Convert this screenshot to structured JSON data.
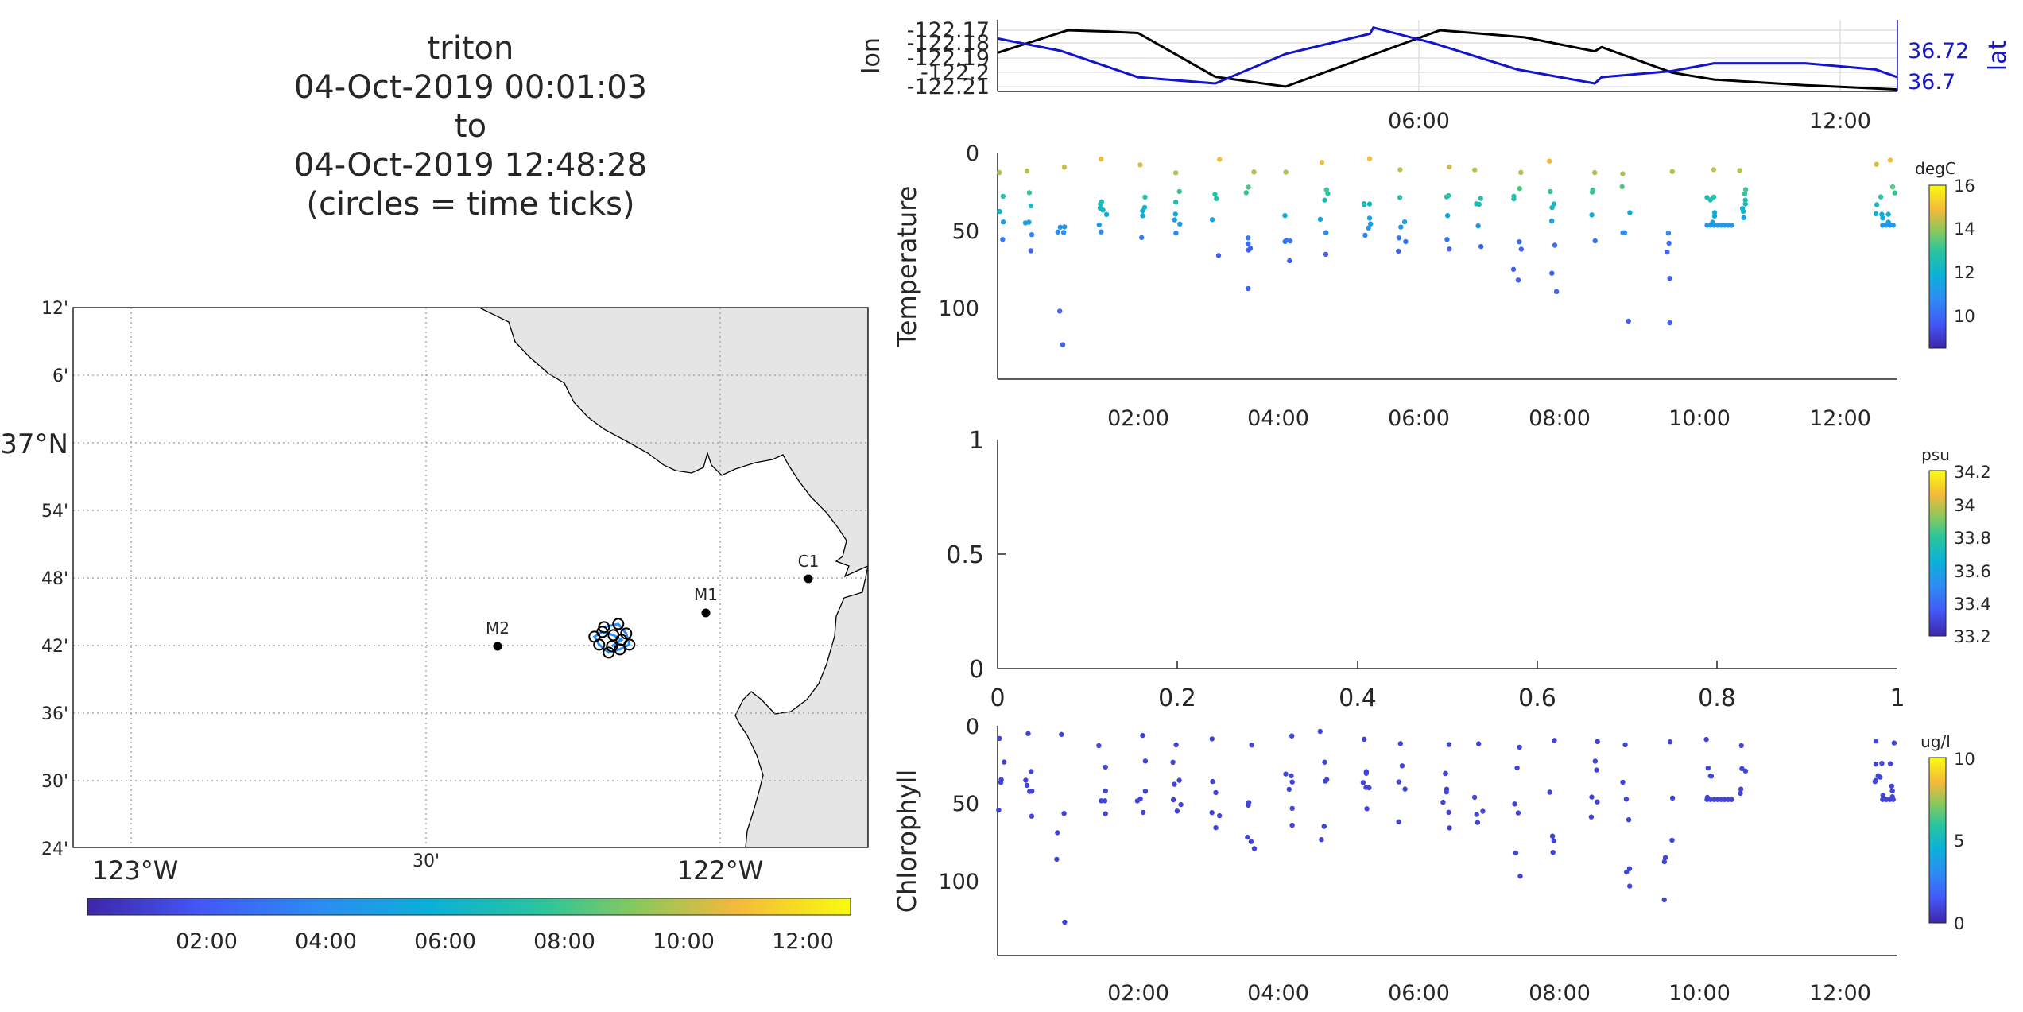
{
  "figure": {
    "title_lines": [
      "triton",
      "04-Oct-2019 00:01:03",
      "to",
      "04-Oct-2019 12:48:28",
      "(circles = time ticks)"
    ]
  },
  "chart_data": [
    {
      "id": "map",
      "type": "scatter",
      "title": "",
      "lat_ticks": [
        {
          "value": 37.2,
          "label": "12'"
        },
        {
          "value": 37.1,
          "label": "6'"
        },
        {
          "value": 37.0,
          "label": "37°N"
        },
        {
          "value": 36.9,
          "label": "54'"
        },
        {
          "value": 36.8,
          "label": "48'"
        },
        {
          "value": 36.7,
          "label": "42'"
        },
        {
          "value": 36.6,
          "label": "36'"
        },
        {
          "value": 36.5,
          "label": "30'"
        },
        {
          "value": 36.4,
          "label": "24'"
        }
      ],
      "lon_ticks": [
        {
          "value": -123.0,
          "label": "123°W"
        },
        {
          "value": -122.5,
          "label": "30'"
        },
        {
          "value": -122.0,
          "label": "122°W"
        }
      ],
      "xlim": [
        -123.1,
        -121.75
      ],
      "ylim": [
        36.4,
        37.2
      ],
      "grid": true,
      "land_color": "#e5e5e5",
      "moorings": [
        {
          "name": "C1",
          "lon": -121.85,
          "lat": 36.797
        },
        {
          "name": "M1",
          "lon": -122.02,
          "lat": 36.747
        },
        {
          "name": "M2",
          "lon": -122.38,
          "lat": 36.697
        }
      ],
      "track_center": {
        "lon": -122.185,
        "lat": 36.71
      },
      "colorbar": {
        "ticks": [
          "02:00",
          "04:00",
          "06:00",
          "08:00",
          "10:00",
          "12:00"
        ],
        "range_hours": [
          0.0,
          12.81
        ]
      }
    },
    {
      "id": "position",
      "type": "line",
      "xlabel": "",
      "ylabel": "lon",
      "ylabel_right": "lat",
      "xlim": [
        0.0,
        12.81
      ],
      "x_ticks": [
        "06:00",
        "12:00"
      ],
      "y_ticks_left": [
        "-122.17",
        "-122.18",
        "-122.19",
        "-122.2",
        "-122.21"
      ],
      "y_ticks_right": [
        "36.72",
        "36.7"
      ],
      "grid": true,
      "series": [
        {
          "color": "#000000",
          "axis": "left",
          "points": [
            [
              0,
              -122.186
            ],
            [
              1.0,
              -122.17
            ],
            [
              1.6,
              -122.171
            ],
            [
              2.0,
              -122.172
            ],
            [
              3.1,
              -122.203
            ],
            [
              4.1,
              -122.21
            ],
            [
              5.2,
              -122.19
            ],
            [
              6.3,
              -122.17
            ],
            [
              7.5,
              -122.175
            ],
            [
              8.5,
              -122.185
            ],
            [
              8.6,
              -122.182
            ],
            [
              9.6,
              -122.2
            ],
            [
              10.2,
              -122.205
            ],
            [
              11.5,
              -122.209
            ],
            [
              12.81,
              -122.212
            ]
          ]
        },
        {
          "color": "#1414c8",
          "axis": "right",
          "points": [
            [
              0,
              36.728
            ],
            [
              0.9,
              36.72
            ],
            [
              2.0,
              36.703
            ],
            [
              3.1,
              36.699
            ],
            [
              4.1,
              36.718
            ],
            [
              5.3,
              36.731
            ],
            [
              5.35,
              36.735
            ],
            [
              6.2,
              36.725
            ],
            [
              7.4,
              36.708
            ],
            [
              8.5,
              36.699
            ],
            [
              8.6,
              36.703
            ],
            [
              9.6,
              36.707
            ],
            [
              10.2,
              36.712
            ],
            [
              11.5,
              36.712
            ],
            [
              12.5,
              36.708
            ],
            [
              12.81,
              36.703
            ]
          ]
        }
      ]
    },
    {
      "id": "temperature",
      "type": "scatter",
      "ylabel": "Temperature",
      "xlim": [
        0.0,
        12.81
      ],
      "ylim": [
        0,
        145
      ],
      "y_reversed": true,
      "x_ticks": [
        "02:00",
        "04:00",
        "06:00",
        "08:00",
        "10:00",
        "12:00"
      ],
      "y_ticks": [
        "0",
        "50",
        "100"
      ],
      "colorbar": {
        "unit": "degC",
        "ticks": [
          "16",
          "14",
          "12",
          "10"
        ],
        "range": [
          8.5,
          16
        ]
      },
      "profile_times": [
        0.05,
        0.45,
        0.9,
        1.5,
        2.05,
        2.55,
        3.1,
        3.6,
        4.15,
        4.65,
        5.25,
        5.75,
        6.4,
        6.85,
        7.4,
        7.9,
        8.5,
        8.95,
        9.55,
        10.15,
        10.6,
        12.55,
        12.72
      ],
      "profile_max_depths": [
        58,
        62,
        130,
        54,
        57,
        58,
        65,
        87,
        68,
        73,
        55,
        65,
        65,
        68,
        94,
        90,
        58,
        110,
        112,
        45,
        45,
        45,
        45
      ],
      "temperature_surface": 15.2,
      "temperature_deep": 9.8
    },
    {
      "id": "salinity",
      "type": "scatter",
      "ylabel": "",
      "xlim": [
        0,
        1
      ],
      "ylim": [
        0,
        1
      ],
      "x_ticks": [
        "0",
        "0.2",
        "0.4",
        "0.6",
        "0.8",
        "1"
      ],
      "y_ticks": [
        "1",
        "0.5",
        "0"
      ],
      "values": [],
      "colorbar": {
        "unit": "psu",
        "ticks": [
          "34.2",
          "34",
          "33.8",
          "33.6",
          "33.4",
          "33.2"
        ],
        "range": [
          33.2,
          34.2
        ]
      }
    },
    {
      "id": "chlorophyll",
      "type": "scatter",
      "ylabel": "Chlorophyll",
      "xlim": [
        0.0,
        12.81
      ],
      "ylim": [
        0,
        145
      ],
      "y_reversed": true,
      "x_ticks": [
        "02:00",
        "04:00",
        "06:00",
        "08:00",
        "10:00",
        "12:00"
      ],
      "y_ticks": [
        "0",
        "50",
        "100"
      ],
      "colorbar": {
        "unit": "ug/l",
        "ticks": [
          "10",
          "5",
          "0"
        ],
        "range": [
          0,
          10
        ]
      },
      "value_typical": 0.6
    }
  ]
}
